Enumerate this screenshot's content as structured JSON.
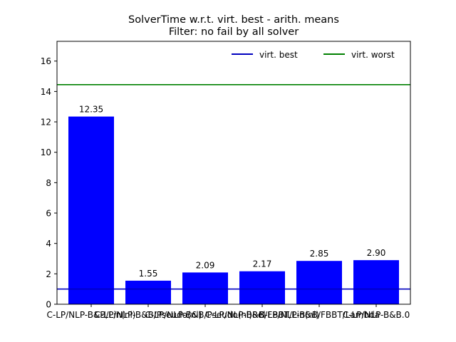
{
  "chart_data": {
    "type": "bar",
    "title": "SolverTime w.r.t. virt. best - arith. means",
    "subtitle": "Filter: no fail by all solver",
    "xlabel": "",
    "ylabel": "",
    "ylim": [
      0,
      17.3
    ],
    "yticks": [
      0,
      2,
      4,
      6,
      8,
      10,
      12,
      14,
      16
    ],
    "categories": [
      "C-LP/NLP-B&B/Lin(nl)",
      "C-LP/NLP-B&B/Pseudo(nl)",
      "C-LP/NLP-B&B/Pseudo(nl)Rel",
      "C-LP/NLP-B&B/FBBT/Lin(nl)",
      "C-LP/NLP-B&B/FBBT/Lambda",
      "C-LP/NLP-B&B.0"
    ],
    "values": [
      12.35,
      1.55,
      2.09,
      2.17,
      2.85,
      2.9
    ],
    "value_labels": [
      "12.35",
      "1.55",
      "2.09",
      "2.17",
      "2.85",
      "2.90"
    ],
    "bar_color": "#0000ff",
    "reference_lines": [
      {
        "name": "virt. best",
        "value": 1.0,
        "color": "#0000bf"
      },
      {
        "name": "virt. worst",
        "value": 14.45,
        "color": "#008000"
      }
    ],
    "grid": false,
    "legend_placement": "top-right"
  }
}
